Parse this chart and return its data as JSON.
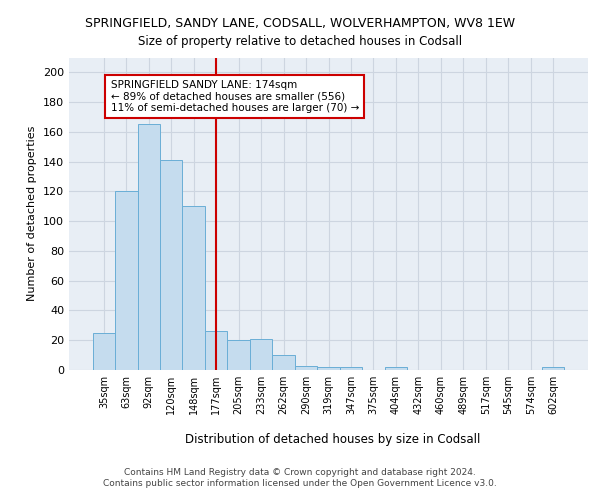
{
  "title_line1": "SPRINGFIELD, SANDY LANE, CODSALL, WOLVERHAMPTON, WV8 1EW",
  "title_line2": "Size of property relative to detached houses in Codsall",
  "xlabel": "Distribution of detached houses by size in Codsall",
  "ylabel": "Number of detached properties",
  "footer_line1": "Contains HM Land Registry data © Crown copyright and database right 2024.",
  "footer_line2": "Contains public sector information licensed under the Open Government Licence v3.0.",
  "categories": [
    "35sqm",
    "63sqm",
    "92sqm",
    "120sqm",
    "148sqm",
    "177sqm",
    "205sqm",
    "233sqm",
    "262sqm",
    "290sqm",
    "319sqm",
    "347sqm",
    "375sqm",
    "404sqm",
    "432sqm",
    "460sqm",
    "489sqm",
    "517sqm",
    "545sqm",
    "574sqm",
    "602sqm"
  ],
  "values": [
    25,
    120,
    165,
    141,
    110,
    26,
    20,
    21,
    10,
    3,
    2,
    2,
    0,
    2,
    0,
    0,
    0,
    0,
    0,
    0,
    2
  ],
  "bar_color": "#c5dcee",
  "bar_edge_color": "#6aaed6",
  "property_line_x": 5.0,
  "property_line_color": "#cc0000",
  "annotation_text": "SPRINGFIELD SANDY LANE: 174sqm\n← 89% of detached houses are smaller (556)\n11% of semi-detached houses are larger (70) →",
  "annotation_box_color": "#ffffff",
  "annotation_box_edge_color": "#cc0000",
  "ylim": [
    0,
    210
  ],
  "yticks": [
    0,
    20,
    40,
    60,
    80,
    100,
    120,
    140,
    160,
    180,
    200
  ],
  "grid_color": "#cdd5e0",
  "background_color": "#e8eef5"
}
